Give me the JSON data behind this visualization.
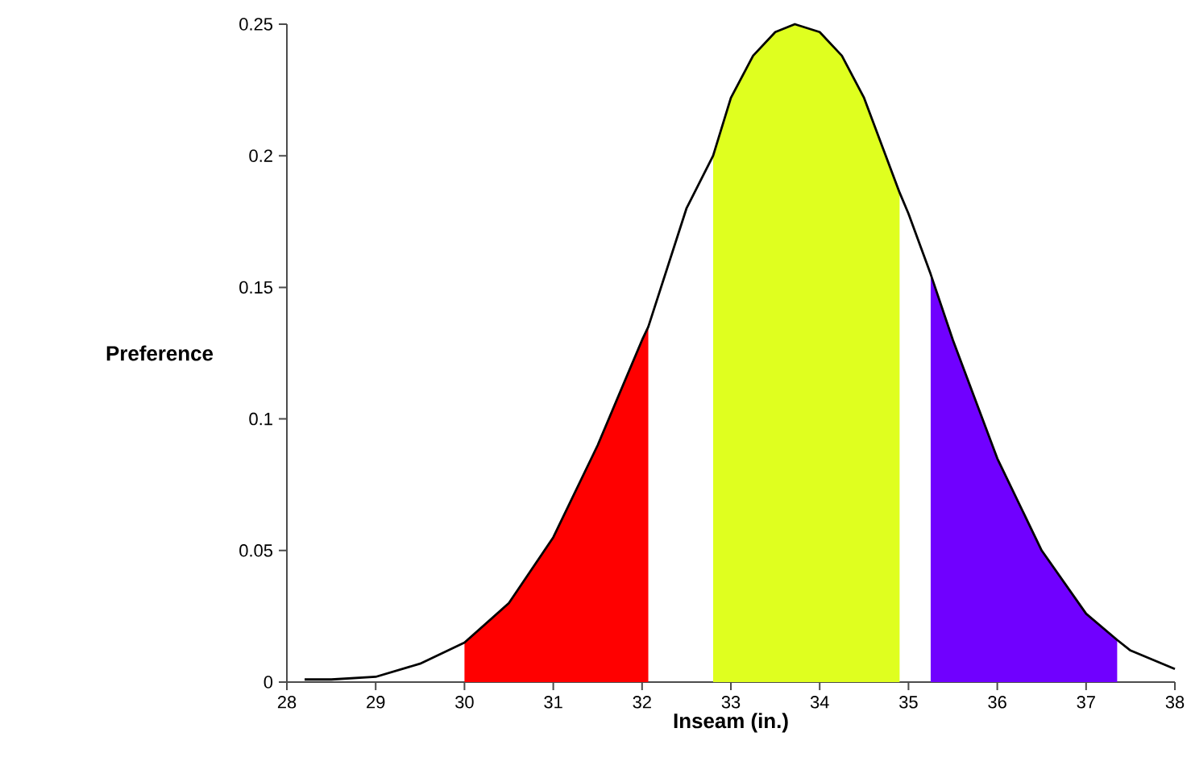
{
  "chart_data": {
    "type": "area",
    "xlabel": "Inseam (in.)",
    "ylabel": "Preference",
    "xlim": [
      28,
      38
    ],
    "ylim": [
      0,
      0.25
    ],
    "xticks": [
      28,
      29,
      30,
      31,
      32,
      33,
      34,
      35,
      36,
      37,
      38
    ],
    "yticks": [
      0,
      0.05,
      0.1,
      0.15,
      0.2,
      0.25
    ],
    "grid": false,
    "marker": "none",
    "line_style": "solid",
    "series": [
      {
        "color": "#ff0000",
        "x": [
          30,
          30.5,
          31,
          31.5,
          32,
          32.07
        ],
        "values": [
          0.015,
          0.03,
          0.055,
          0.09,
          0.13,
          0.135
        ]
      },
      {
        "color": "#dfff1f",
        "x": [
          32.8,
          33,
          33.25,
          33.5,
          33.72,
          34,
          34.25,
          34.5,
          34.9
        ],
        "values": [
          0.2,
          0.222,
          0.238,
          0.247,
          0.25,
          0.247,
          0.238,
          0.222,
          0.186
        ]
      },
      {
        "color": "#7000ff",
        "x": [
          35.25,
          35.5,
          36,
          36.5,
          37,
          37.35
        ],
        "values": [
          0.155,
          0.13,
          0.085,
          0.05,
          0.026,
          0.016
        ]
      },
      {
        "type": "line",
        "color": "#000000",
        "x": [
          28.2,
          28.5,
          29,
          29.5,
          30,
          30.5,
          31,
          31.5,
          32,
          32.07,
          32.5,
          32.8,
          33,
          33.25,
          33.5,
          33.72,
          34,
          34.25,
          34.5,
          34.9,
          35,
          35.25,
          35.5,
          36,
          36.5,
          37,
          37.35,
          37.5,
          38
        ],
        "values": [
          0.001,
          0.001,
          0.002,
          0.007,
          0.015,
          0.03,
          0.055,
          0.09,
          0.13,
          0.135,
          0.18,
          0.2,
          0.222,
          0.238,
          0.247,
          0.25,
          0.247,
          0.238,
          0.222,
          0.186,
          0.178,
          0.155,
          0.13,
          0.085,
          0.05,
          0.026,
          0.016,
          0.012,
          0.005
        ]
      }
    ]
  }
}
